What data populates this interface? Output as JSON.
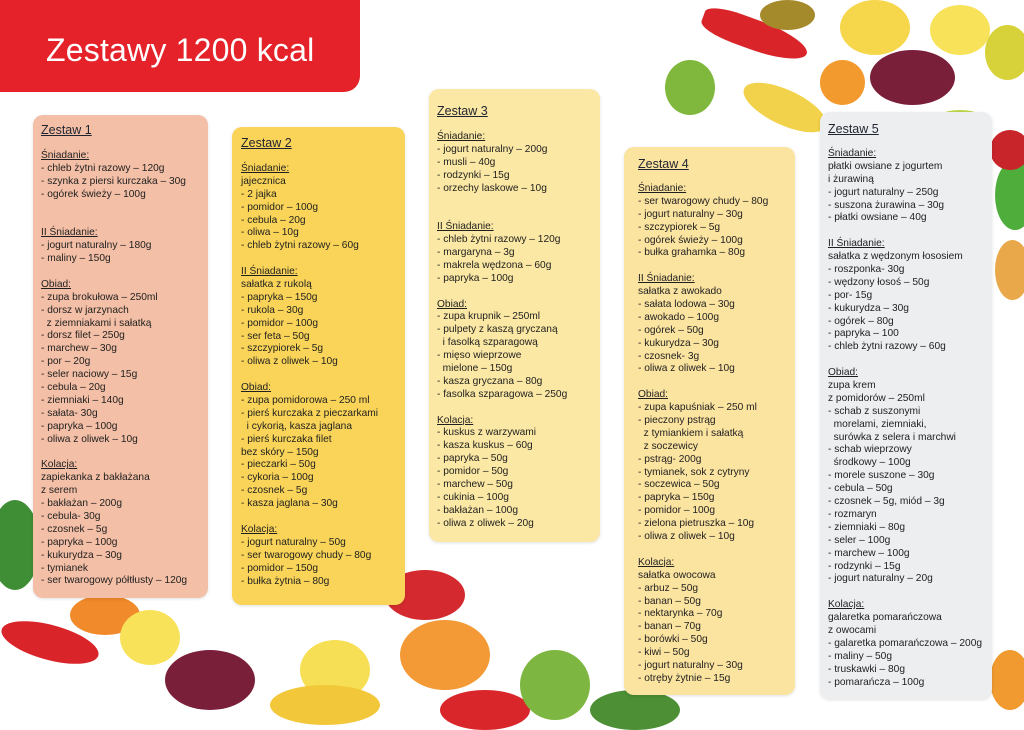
{
  "header": {
    "title": "Zestawy 1200 kcal"
  },
  "colors": {
    "banner": "#e5222a",
    "card1": "#f3bfa6",
    "card2": "#f9d458",
    "card3": "#fbe8a4",
    "card4": "#fbe3a0",
    "card5": "#edeef0"
  },
  "cards": [
    {
      "title": "Zestaw 1",
      "lines": [
        "Śniadanie:",
        "- chleb żytni razowy – 120g",
        "- szynka z piersi kurczaka – 30g",
        "- ogórek świeży – 100g",
        "",
        "",
        "II Śniadanie:",
        "- jogurt naturalny – 180g",
        "- maliny – 150g",
        "",
        "Obiad:",
        "- zupa brokułowa – 250ml",
        "- dorsz w jarzynach",
        "  z ziemniakami i sałatką",
        "- dorsz filet – 250g",
        "- marchew – 30g",
        "- por – 20g",
        "- seler naciowy – 15g",
        "- cebula – 20g",
        "- ziemniaki – 140g",
        "- sałata- 30g",
        "- papryka – 100g",
        "- oliwa z oliwek – 10g",
        "",
        "Kolacja:",
        "zapiekanka z bakłażana",
        "z serem",
        "- bakłażan – 200g",
        "- cebula- 30g",
        "- czosnek – 5g",
        "- papryka – 100g",
        "- kukurydza – 30g",
        "- tymianek",
        "- ser twarogowy półtłusty – 120g"
      ]
    },
    {
      "title": "Zestaw 2",
      "lines": [
        "Śniadanie:",
        "jajecznica",
        "- 2 jajka",
        "- pomidor – 100g",
        "- cebula – 20g",
        "- oliwa – 10g",
        "- chleb żytni razowy – 60g",
        "",
        "II Śniadanie:",
        "sałatka z rukolą",
        "- papryka – 150g",
        "- rukola – 30g",
        "- pomidor – 100g",
        "- ser feta – 50g",
        "- szczypiorek – 5g",
        "- oliwa z oliwek – 10g",
        "",
        "Obiad:",
        "- zupa pomidorowa – 250 ml",
        "- pierś kurczaka z pieczarkami",
        "  i cykorią, kasza jaglana",
        "- pierś kurczaka filet",
        "bez skóry – 150g",
        "- pieczarki – 50g",
        "- cykoria – 100g",
        "- czosnek – 5g",
        "- kasza jaglana – 30g",
        "",
        "Kolacja:",
        "- jogurt naturalny – 50g",
        "- ser twarogowy chudy – 80g",
        "- pomidor – 150g",
        "- bułka żytnia – 80g"
      ]
    },
    {
      "title": "Zestaw 3",
      "lines": [
        "Śniadanie:",
        "- jogurt naturalny – 200g",
        "- musli – 40g",
        "- rodzynki – 15g",
        "- orzechy laskowe – 10g",
        "",
        "",
        "II Śniadanie:",
        "- chleb żytni razowy – 120g",
        "- margaryna – 3g",
        "- makrela wędzona – 60g",
        "- papryka – 100g",
        "",
        "Obiad:",
        "- zupa krupnik – 250ml",
        "- pulpety z kaszą gryczaną",
        "  i fasolką szparagową",
        "- mięso wieprzowe",
        "  mielone – 150g",
        "- kasza gryczana – 80g",
        "- fasolka szparagowa – 250g",
        "",
        "Kolacja:",
        "- kuskus z warzywami",
        "- kasza kuskus – 60g",
        "- papryka – 50g",
        "- pomidor – 50g",
        "- marchew – 50g",
        "- cukinia – 100g",
        "- bakłażan – 100g",
        "- oliwa z oliwek – 20g"
      ]
    },
    {
      "title": "Zestaw 4",
      "lines": [
        "Śniadanie:",
        "- ser twarogowy chudy – 80g",
        "- jogurt naturalny – 30g",
        "- szczypiorek – 5g",
        "- ogórek świeży – 100g",
        "- bułka grahamka – 80g",
        "",
        "II Śniadanie:",
        "sałatka z awokado",
        "- sałata lodowa – 30g",
        "- awokado – 100g",
        "- ogórek – 50g",
        "- kukurydza – 30g",
        "- czosnek- 3g",
        "- oliwa z oliwek – 10g",
        "",
        "Obiad:",
        "- zupa kapuśniak – 250 ml",
        "- pieczony pstrąg",
        "  z tymiankiem i sałatką",
        "  z soczewicy",
        "- pstrąg- 200g",
        "- tymianek, sok z cytryny",
        "- soczewica – 50g",
        "- papryka – 150g",
        "- pomidor – 100g",
        "- zielona pietruszka – 10g",
        "- oliwa z oliwek – 10g",
        "",
        "Kolacja:",
        "sałatka owocowa",
        "- arbuz – 50g",
        "- banan – 50g",
        "- nektarynka – 70g",
        "- banan – 70g",
        "- borówki – 50g",
        "- kiwi – 50g",
        "- jogurt naturalny – 30g",
        "- otręby żytnie – 15g"
      ]
    },
    {
      "title": "Zestaw 5",
      "lines": [
        "Śniadanie:",
        "płatki owsiane z jogurtem",
        "i żurawiną",
        "- jogurt naturalny – 250g",
        "- suszona żurawina – 30g",
        "- płatki owsiane – 40g",
        "",
        "II Śniadanie:",
        "sałatka z wędzonym łososiem",
        "- roszponka- 30g",
        "- wędzony łosoś – 50g",
        "- por- 15g",
        "- kukurydza – 30g",
        "- ogórek – 80g",
        "- papryka – 100",
        "- chleb żytni razowy – 60g",
        "",
        "Obiad:",
        "zupa krem",
        "z pomidorów – 250ml",
        "- schab z suszonymi",
        "  morelami, ziemniaki,",
        "  surówka z selera i marchwi",
        "- schab wieprzowy",
        "  środkowy – 100g",
        "- morele suszone – 30g",
        "- cebula – 50g",
        "- czosnek – 5g, miód – 3g",
        "- rozmaryn",
        "- ziemniaki – 80g",
        "- seler – 100g",
        "- marchew – 100g",
        "- rodzynki – 15g",
        "- jogurt naturalny – 20g",
        "",
        "Kolacja:",
        "galaretka pomarańczowa",
        "z owocami",
        "- galaretka pomarańczowa – 200g",
        "- maliny – 50g",
        "- truskawki – 80g",
        "- pomarańcza – 100g"
      ]
    }
  ]
}
